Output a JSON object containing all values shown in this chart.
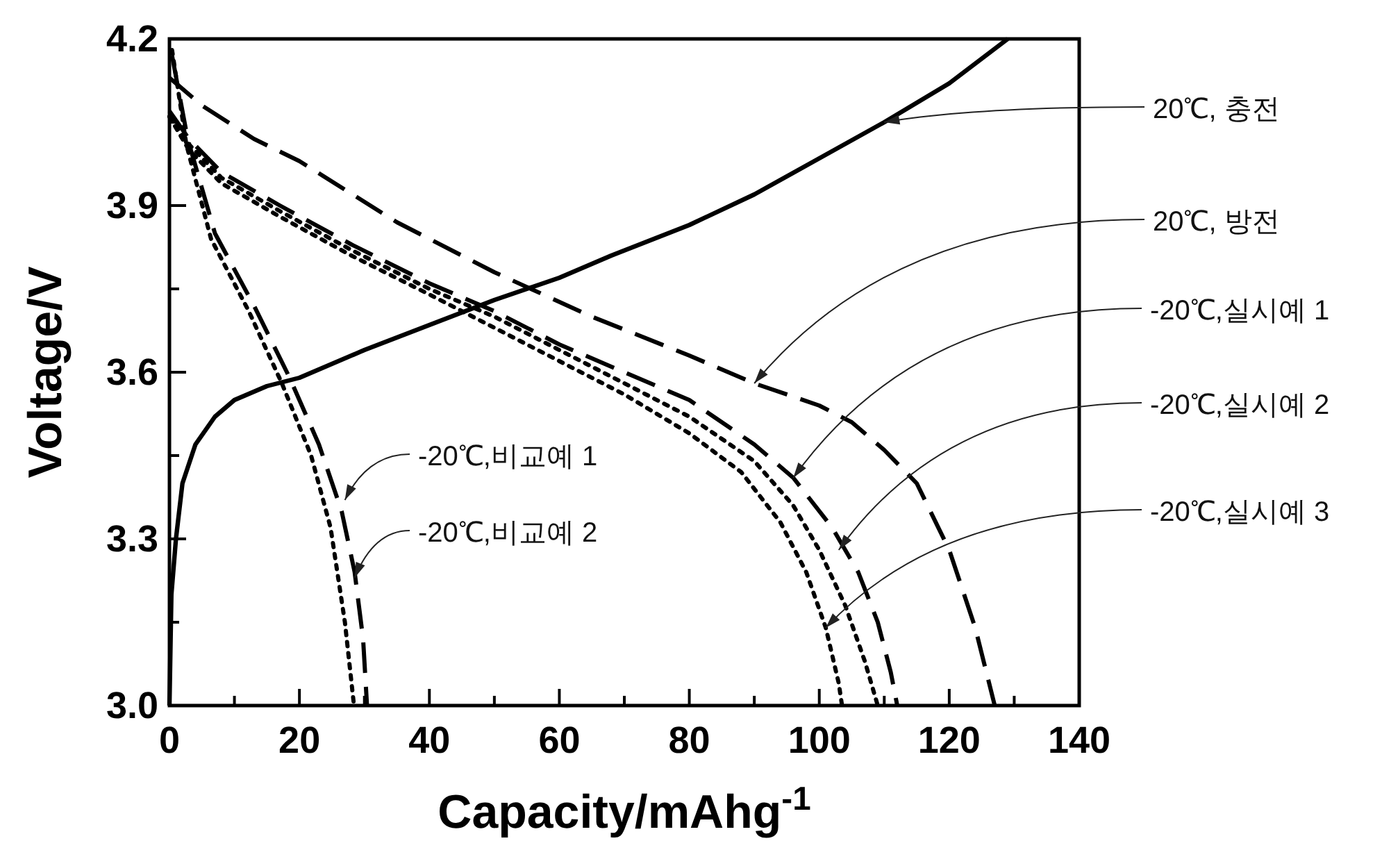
{
  "chart_data": {
    "type": "line",
    "xlabel": "Capacity/mAhg$^{-1}$",
    "ylabel": "Voltage/V",
    "xlim": [
      0,
      140
    ],
    "ylim": [
      3.0,
      4.2
    ],
    "xticks": [
      0,
      {
        "value": 10,
        "label": null
      },
      20,
      {
        "value": 30,
        "label": null
      },
      40,
      {
        "value": 50,
        "label": null
      },
      60,
      {
        "value": 70,
        "label": null
      },
      80,
      {
        "value": 90,
        "label": null
      },
      100,
      {
        "value": 110,
        "label": null
      },
      120,
      {
        "value": 130,
        "label": null
      },
      140
    ],
    "yticks": [
      {
        "value": 3.0,
        "label": "3.0"
      },
      {
        "value": 3.15,
        "label": null
      },
      {
        "value": 3.3,
        "label": "3.3"
      },
      {
        "value": 3.45,
        "label": null
      },
      {
        "value": 3.6,
        "label": "3.6"
      },
      {
        "value": 3.75,
        "label": null
      },
      {
        "value": 3.9,
        "label": "3.9"
      },
      {
        "value": 4.05,
        "label": null
      },
      {
        "value": 4.2,
        "label": "4.2"
      }
    ],
    "grid": false,
    "marker": "none",
    "series": [
      {
        "color": "#000000",
        "line_style": "solid",
        "x": [
          0,
          0.3,
          1,
          2,
          4,
          7,
          10,
          15,
          20,
          30,
          40,
          50,
          60,
          68,
          80,
          90,
          100,
          110,
          120,
          129
        ],
        "values": [
          3.0,
          3.2,
          3.3,
          3.4,
          3.47,
          3.52,
          3.55,
          3.575,
          3.59,
          3.64,
          3.685,
          3.73,
          3.77,
          3.81,
          3.865,
          3.92,
          3.985,
          4.05,
          4.12,
          4.2
        ]
      },
      {
        "color": "#000000",
        "line_style": "dashed",
        "x": [
          0,
          5,
          13,
          20,
          35,
          50,
          65,
          80,
          90,
          100,
          105,
          110,
          115,
          120,
          124,
          127
        ],
        "values": [
          4.13,
          4.08,
          4.02,
          3.98,
          3.87,
          3.78,
          3.7,
          3.63,
          3.58,
          3.54,
          3.51,
          3.46,
          3.4,
          3.28,
          3.14,
          3.0
        ]
      },
      {
        "color": "#000000",
        "line_style": "dashed",
        "x": [
          0,
          3,
          8,
          17,
          28,
          40,
          50,
          60,
          70,
          80,
          90,
          96,
          102,
          106,
          109,
          111,
          112
        ],
        "values": [
          4.07,
          4.02,
          3.96,
          3.9,
          3.83,
          3.76,
          3.71,
          3.65,
          3.6,
          3.55,
          3.47,
          3.41,
          3.32,
          3.24,
          3.15,
          3.06,
          3.0
        ]
      },
      {
        "color": "#000000",
        "line_style": "dotted",
        "x": [
          0,
          3,
          8,
          17,
          28,
          40,
          50,
          60,
          70,
          80,
          90,
          96,
          100,
          104,
          107,
          109
        ],
        "values": [
          4.06,
          4.01,
          3.95,
          3.89,
          3.82,
          3.75,
          3.7,
          3.64,
          3.58,
          3.52,
          3.44,
          3.36,
          3.28,
          3.18,
          3.08,
          3.0
        ]
      },
      {
        "color": "#000000",
        "line_style": "dotted",
        "x": [
          0,
          3,
          8,
          17,
          28,
          40,
          50,
          60,
          70,
          80,
          88,
          94,
          98,
          101,
          103,
          103.5
        ],
        "values": [
          4.06,
          4.0,
          3.94,
          3.88,
          3.81,
          3.74,
          3.68,
          3.62,
          3.56,
          3.49,
          3.42,
          3.33,
          3.24,
          3.14,
          3.04,
          3.0
        ]
      },
      {
        "color": "#000000",
        "line_style": "dotted",
        "x": [
          0.4,
          2.6,
          6.4,
          12.2,
          17.3,
          21.8,
          24.8,
          27,
          28.4
        ],
        "values": [
          4.18,
          4.01,
          3.84,
          3.71,
          3.58,
          3.45,
          3.32,
          3.15,
          3.0
        ]
      },
      {
        "color": "#000000",
        "line_style": "dashed",
        "x": [
          0.4,
          2.8,
          7,
          13,
          18.5,
          23,
          26.5,
          28.5,
          29.8,
          30.4
        ],
        "values": [
          4.17,
          4.02,
          3.85,
          3.72,
          3.59,
          3.47,
          3.35,
          3.24,
          3.12,
          3.0
        ]
      }
    ],
    "annotations": [
      {
        "text": "20℃, 충전",
        "x": 110,
        "y": 4.05
      },
      {
        "text": "20℃, 방전",
        "x": 90,
        "y": 3.58
      },
      {
        "text": "-20℃,실시예 1",
        "x": 96,
        "y": 3.41
      },
      {
        "text": "-20℃,실시예 2",
        "x": 103,
        "y": 3.28
      },
      {
        "text": "-20℃,실시예 3",
        "x": 101,
        "y": 3.14
      },
      {
        "text": "-20℃,비교예 1",
        "x": 27,
        "y": 3.37
      },
      {
        "text": "-20℃,비교예 2",
        "x": 28.5,
        "y": 3.23
      }
    ]
  }
}
